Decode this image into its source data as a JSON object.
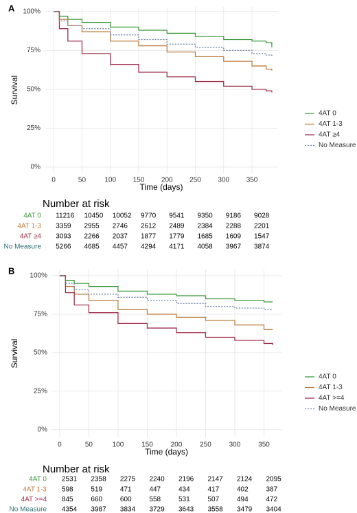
{
  "chart_data": [
    {
      "type": "line",
      "panel_label": "A",
      "x_label": "Time (days)",
      "y_label": "Survival",
      "xlim": [
        -16,
        396
      ],
      "xticks": [
        0,
        50,
        100,
        150,
        200,
        250,
        300,
        350
      ],
      "ylim": [
        -4,
        103
      ],
      "yticks": [
        {
          "value": 0,
          "label": "0%"
        },
        {
          "value": 25,
          "label": "25%"
        },
        {
          "value": 50,
          "label": "50%"
        },
        {
          "value": 75,
          "label": "75%"
        },
        {
          "value": 100,
          "label": "100%"
        }
      ],
      "grid": true,
      "x": [
        0,
        10,
        25,
        50,
        100,
        150,
        200,
        250,
        300,
        350,
        375,
        385
      ],
      "series": [
        {
          "name": "4AT 0",
          "color": "#3d9a3d",
          "dash": false,
          "values": [
            100,
            97,
            95,
            93,
            90,
            88,
            86,
            84,
            82,
            81,
            80,
            77
          ]
        },
        {
          "name": "4AT 1-3",
          "color": "#c07c3e",
          "dash": false,
          "values": [
            100,
            95,
            91,
            87,
            81,
            78,
            74,
            71,
            68,
            65,
            63,
            62
          ]
        },
        {
          "name": "4AT ≥4",
          "color": "#a0304e",
          "dash": false,
          "values": [
            100,
            89,
            81,
            73,
            66,
            61,
            58,
            55,
            52,
            50,
            49,
            48
          ]
        },
        {
          "name": "No Measure",
          "color": "#6d7fa6",
          "dash": true,
          "values": [
            100,
            94,
            91,
            89,
            85,
            82,
            79,
            77,
            75,
            73,
            72,
            71
          ]
        }
      ],
      "risk_table": {
        "title": "Number at risk",
        "rows": [
          {
            "name": "4AT 0",
            "color": "#3d9a3d",
            "values": [
              11216,
              10450,
              10052,
              9770,
              9541,
              9350,
              9186,
              9028
            ]
          },
          {
            "name": "4AT 1-3",
            "color": "#c07c3e",
            "values": [
              3359,
              2955,
              2746,
              2612,
              2489,
              2384,
              2288,
              2201
            ]
          },
          {
            "name": "4AT ≥4",
            "color": "#a0304e",
            "values": [
              3093,
              2266,
              2037,
              1877,
              1779,
              1685,
              1609,
              1547
            ]
          },
          {
            "name": "No Measure",
            "color": "#2e6f73",
            "values": [
              5266,
              4685,
              4457,
              4294,
              4171,
              4058,
              3967,
              3874
            ]
          }
        ]
      }
    },
    {
      "type": "line",
      "panel_label": "B",
      "x_label": "Time (days)",
      "y_label": "Survival",
      "xlim": [
        -14,
        380
      ],
      "xticks": [
        0,
        50,
        100,
        150,
        200,
        250,
        300,
        350
      ],
      "ylim": [
        -5,
        104
      ],
      "yticks": [
        {
          "value": 0,
          "label": "0%"
        },
        {
          "value": 25,
          "label": "25%"
        },
        {
          "value": 50,
          "label": "50%"
        },
        {
          "value": 75,
          "label": "75%"
        },
        {
          "value": 100,
          "label": "100%"
        }
      ],
      "grid": true,
      "x": [
        0,
        10,
        25,
        50,
        100,
        150,
        200,
        250,
        300,
        350,
        365
      ],
      "series": [
        {
          "name": "4AT 0",
          "color": "#3d9a3d",
          "dash": false,
          "values": [
            100,
            97,
            95,
            93,
            90,
            88,
            87,
            85,
            84,
            83,
            83
          ]
        },
        {
          "name": "4AT 1-3",
          "color": "#c07c3e",
          "dash": false,
          "values": [
            100,
            93,
            88,
            84,
            78,
            75,
            73,
            71,
            68,
            65,
            65
          ]
        },
        {
          "name": "4AT >=4",
          "color": "#a0304e",
          "dash": false,
          "values": [
            100,
            89,
            81,
            76,
            69,
            66,
            63,
            60,
            58,
            56,
            55
          ]
        },
        {
          "name": "No Measure",
          "color": "#6d7fa6",
          "dash": true,
          "values": [
            100,
            95,
            91,
            88,
            86,
            84,
            82,
            80,
            79,
            78,
            78
          ]
        }
      ],
      "risk_table": {
        "title": "Number at risk",
        "rows": [
          {
            "name": "4AT 0",
            "color": "#3d9a3d",
            "values": [
              2531,
              2358,
              2275,
              2240,
              2196,
              2147,
              2124,
              2095
            ]
          },
          {
            "name": "4AT 1-3",
            "color": "#c07c3e",
            "values": [
              598,
              519,
              471,
              447,
              434,
              417,
              402,
              387
            ]
          },
          {
            "name": "4AT >=4",
            "color": "#a0304e",
            "values": [
              845,
              660,
              600,
              558,
              531,
              507,
              494,
              472
            ]
          },
          {
            "name": "No Measure",
            "color": "#2e6f73",
            "values": [
              4354,
              3987,
              3834,
              3729,
              3643,
              3558,
              3479,
              3404
            ]
          }
        ]
      }
    }
  ]
}
